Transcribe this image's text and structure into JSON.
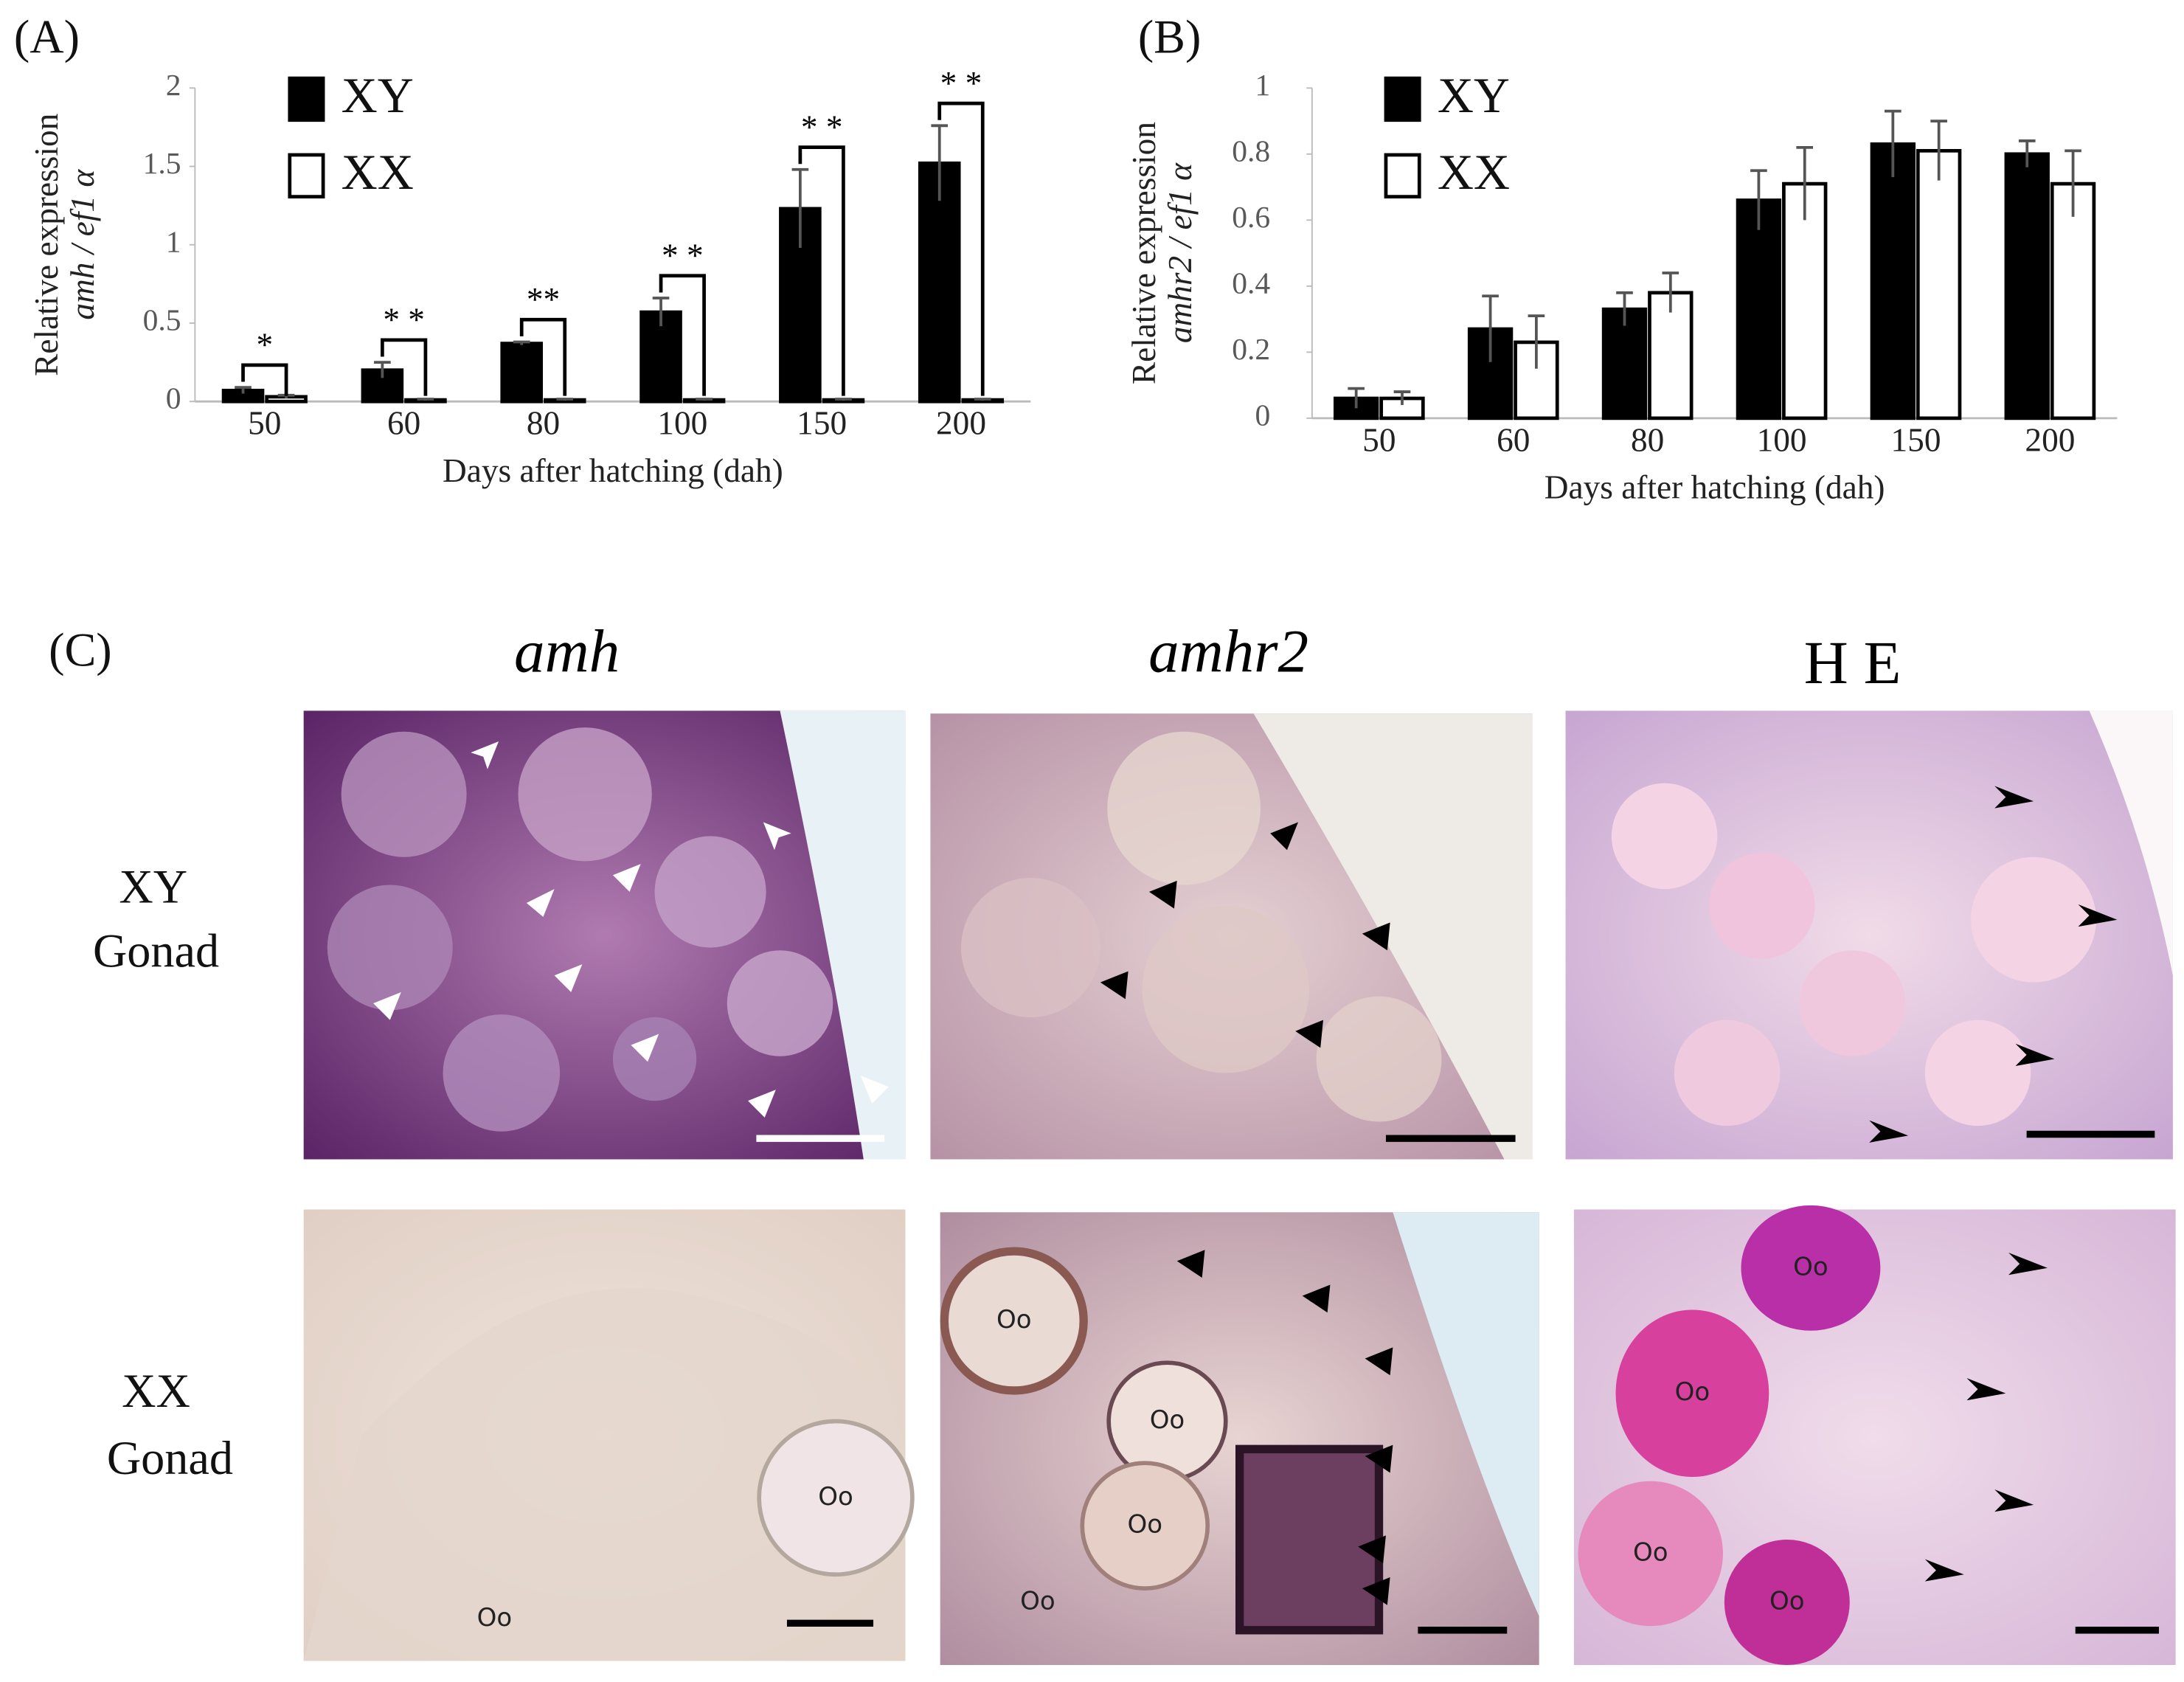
{
  "chart_data": [
    {
      "type": "bar",
      "panel_label": "(A)",
      "y_label": [
        "Relative expression",
        "amh / ef1 α"
      ],
      "x_label": "Days after hatching (dah)",
      "categories": [
        "50",
        "60",
        "80",
        "100",
        "150",
        "200"
      ],
      "series": [
        {
          "name": "XY",
          "color": "#000000",
          "values": [
            0.07,
            0.2,
            0.37,
            0.57,
            1.23,
            1.52
          ],
          "errors": [
            0.02,
            0.05,
            0.01,
            0.09,
            0.25,
            0.24
          ]
        },
        {
          "name": "XX",
          "color": "#ffffff",
          "values": [
            0.03,
            0.01,
            0.01,
            0.01,
            0.01,
            0.01
          ],
          "errors": [
            0.01,
            0.005,
            0.005,
            0.005,
            0.005,
            0.005
          ]
        }
      ],
      "significance": [
        "*",
        "* *",
        "**",
        "* *",
        "* *",
        "* *"
      ],
      "ylim": [
        0,
        2
      ],
      "yticks": [
        0,
        0.5,
        1,
        1.5,
        2
      ],
      "grid": false
    },
    {
      "type": "bar",
      "panel_label": "(B)",
      "y_label": [
        "Relative expression",
        "amhr2 / ef1 α"
      ],
      "x_label": "Days after hatching (dah)",
      "categories": [
        "50",
        "60",
        "80",
        "100",
        "150",
        "200"
      ],
      "series": [
        {
          "name": "XY",
          "color": "#000000",
          "values": [
            0.06,
            0.27,
            0.33,
            0.66,
            0.83,
            0.8
          ],
          "errors": [
            0.03,
            0.1,
            0.05,
            0.09,
            0.1,
            0.04
          ]
        },
        {
          "name": "XX",
          "color": "#ffffff",
          "values": [
            0.06,
            0.23,
            0.38,
            0.71,
            0.81,
            0.71
          ],
          "errors": [
            0.02,
            0.08,
            0.06,
            0.11,
            0.09,
            0.1
          ]
        }
      ],
      "ylim": [
        0,
        1
      ],
      "yticks": [
        0,
        0.2,
        0.4,
        0.6,
        0.8,
        1
      ],
      "grid": false
    }
  ],
  "panel_c": {
    "label": "(C)",
    "columns": [
      "amh",
      "amhr2",
      "H E"
    ],
    "rows": [
      [
        "XY",
        "Gonad"
      ],
      [
        "XX",
        "Gonad"
      ]
    ],
    "oocyte_label": "Oo"
  }
}
